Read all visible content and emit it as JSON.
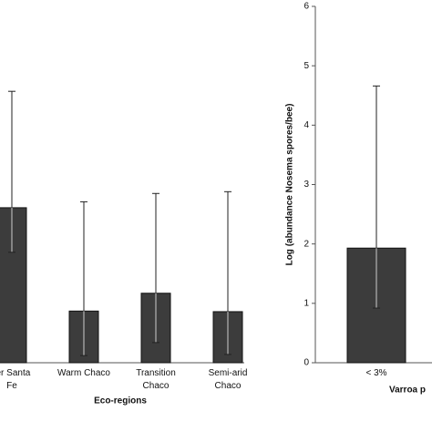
{
  "chart_data": [
    {
      "type": "bar",
      "xlabel": "Eco-regions",
      "categories": [
        "ter Santa\nFe",
        "Warm Chaco",
        "Transition\nChaco",
        "Semi-arid\nChaco"
      ],
      "values": [
        2.61,
        0.87,
        1.17,
        0.86
      ],
      "whisker_high": [
        4.57,
        2.71,
        2.85,
        2.88
      ],
      "whisker_low": [
        1.86,
        0.12,
        0.34,
        0.14
      ],
      "color": "#3c3c3c",
      "ylim": [
        0,
        6
      ]
    },
    {
      "type": "bar",
      "xlabel": "Varroa p",
      "ylabel": "Log (abundance Nosema spores/bee)",
      "categories": [
        "< 3%"
      ],
      "values": [
        1.93
      ],
      "whisker_high": [
        4.66
      ],
      "whisker_low": [
        0.92
      ],
      "color": "#3c3c3c",
      "ylim": [
        0,
        6
      ],
      "yticks": [
        0,
        1,
        2,
        3,
        4,
        5,
        6
      ]
    }
  ]
}
